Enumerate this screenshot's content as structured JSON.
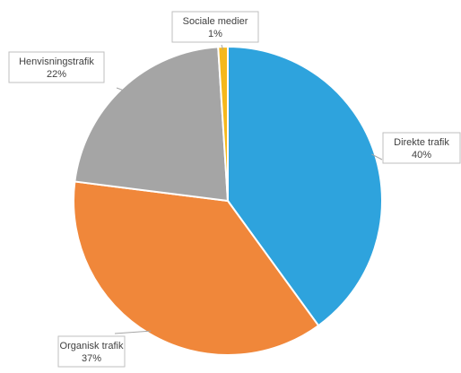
{
  "chart_data": {
    "type": "pie",
    "title": "",
    "legend": "none",
    "slices": [
      {
        "label": "Direkte trafik",
        "value": 40,
        "value_label": "40%",
        "color": "#2ea3dd"
      },
      {
        "label": "Organisk trafik",
        "value": 37,
        "value_label": "37%",
        "color": "#f0873a"
      },
      {
        "label": "Henvisningstrafik",
        "value": 22,
        "value_label": "22%",
        "color": "#a5a5a5"
      },
      {
        "label": "Sociale medier",
        "value": 1,
        "value_label": "1%",
        "color": "#f5b81c"
      }
    ]
  }
}
